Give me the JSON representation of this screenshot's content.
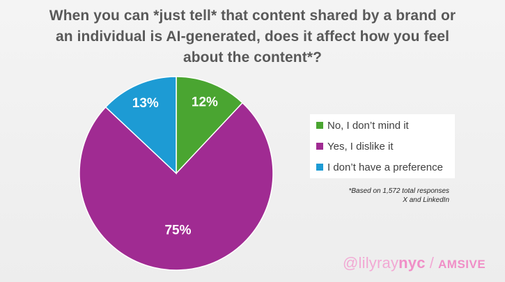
{
  "title_lines": [
    "When you can *just tell* that content shared by a brand or",
    "an individual is AI-generated, does it affect how you feel",
    "about the content*?"
  ],
  "chart_data": {
    "type": "pie",
    "title": "When you can *just tell* that content shared by a brand or an individual is AI-generated, does it affect how you feel about the content*?",
    "slices": [
      {
        "label": "No, I don’t mind it",
        "value": 12,
        "display": "12%",
        "color": "#4aa531"
      },
      {
        "label": "Yes, I dislike it",
        "value": 75,
        "display": "75%",
        "color": "#a02b92"
      },
      {
        "label": "I don’t have a preference",
        "value": 13,
        "display": "13%",
        "color": "#1d9bd4"
      }
    ],
    "legend_position": "right"
  },
  "footnote": {
    "line1": "*Based on 1,572 total responses",
    "line2": "X and LinkedIn"
  },
  "credit": {
    "handle_part1": "@lilyray",
    "handle_part2": "nyc",
    "separator": "/",
    "brand": "AMSIVE"
  }
}
